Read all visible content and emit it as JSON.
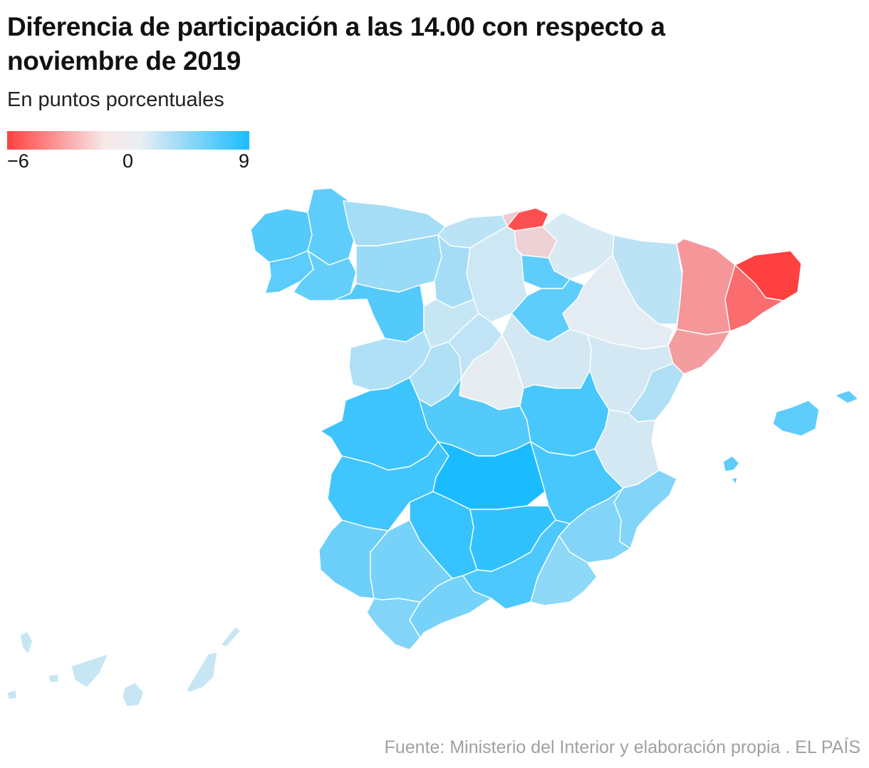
{
  "title": "Diferencia de participación a las 14.00 con respecto a noviembre de 2019",
  "subtitle": "En puntos porcentuales",
  "legend": {
    "min_label": "−6",
    "mid_label": "0",
    "max_label": "9",
    "min_value": -6,
    "max_value": 9,
    "colors": {
      "min": "#ff4040",
      "zero": "#eaeef2",
      "max": "#1abcff"
    }
  },
  "source": "Fuente: Ministerio del Interior y elaboración propia . EL PAÍS",
  "map_data": {
    "type": "choropleth",
    "unit": "puntos porcentuales",
    "regions": [
      {
        "name": "A Coruña",
        "value": 6.5
      },
      {
        "name": "Lugo",
        "value": 6.0
      },
      {
        "name": "Pontevedra",
        "value": 6.2
      },
      {
        "name": "Ourense",
        "value": 5.8
      },
      {
        "name": "Asturias",
        "value": 3.0
      },
      {
        "name": "Cantabria",
        "value": 2.0
      },
      {
        "name": "Bizkaia",
        "value": -1.2
      },
      {
        "name": "Gipuzkoa",
        "value": -5.5
      },
      {
        "name": "Araba",
        "value": -1.0
      },
      {
        "name": "Navarra",
        "value": 0.8
      },
      {
        "name": "La Rioja",
        "value": 6.0
      },
      {
        "name": "Huesca",
        "value": 2.0
      },
      {
        "name": "Zaragoza",
        "value": 0.3
      },
      {
        "name": "Teruel",
        "value": 1.0
      },
      {
        "name": "Lleida",
        "value": -3.0
      },
      {
        "name": "Girona",
        "value": -6.0
      },
      {
        "name": "Barcelona",
        "value": -4.5
      },
      {
        "name": "Tarragona",
        "value": -2.8
      },
      {
        "name": "León",
        "value": 3.5
      },
      {
        "name": "Palencia",
        "value": 3.0
      },
      {
        "name": "Burgos",
        "value": 1.2
      },
      {
        "name": "Zamora",
        "value": 6.5
      },
      {
        "name": "Valladolid",
        "value": 1.5
      },
      {
        "name": "Soria",
        "value": 6.0
      },
      {
        "name": "Salamanca",
        "value": 2.5
      },
      {
        "name": "Ávila",
        "value": 2.5
      },
      {
        "name": "Segovia",
        "value": 1.8
      },
      {
        "name": "Madrid",
        "value": 0.2
      },
      {
        "name": "Guadalajara",
        "value": 1.0
      },
      {
        "name": "Cáceres",
        "value": 7.5
      },
      {
        "name": "Toledo",
        "value": 6.5
      },
      {
        "name": "Cuenca",
        "value": 7.0
      },
      {
        "name": "Badajoz",
        "value": 7.3
      },
      {
        "name": "Ciudad Real",
        "value": 9.0
      },
      {
        "name": "Albacete",
        "value": 7.0
      },
      {
        "name": "Castellón",
        "value": 2.5
      },
      {
        "name": "Valencia",
        "value": 1.0
      },
      {
        "name": "Alicante",
        "value": 4.5
      },
      {
        "name": "Murcia",
        "value": 4.5
      },
      {
        "name": "Huelva",
        "value": 5.5
      },
      {
        "name": "Sevilla",
        "value": 5.0
      },
      {
        "name": "Córdoba",
        "value": 7.8
      },
      {
        "name": "Jaén",
        "value": 8.0
      },
      {
        "name": "Granada",
        "value": 6.8
      },
      {
        "name": "Almería",
        "value": 4.0
      },
      {
        "name": "Cádiz",
        "value": 4.5
      },
      {
        "name": "Málaga",
        "value": 5.0
      },
      {
        "name": "Illes Balears",
        "value": 6.0
      },
      {
        "name": "Las Palmas",
        "value": 1.5
      },
      {
        "name": "Santa Cruz de Tenerife",
        "value": 1.5
      }
    ]
  }
}
